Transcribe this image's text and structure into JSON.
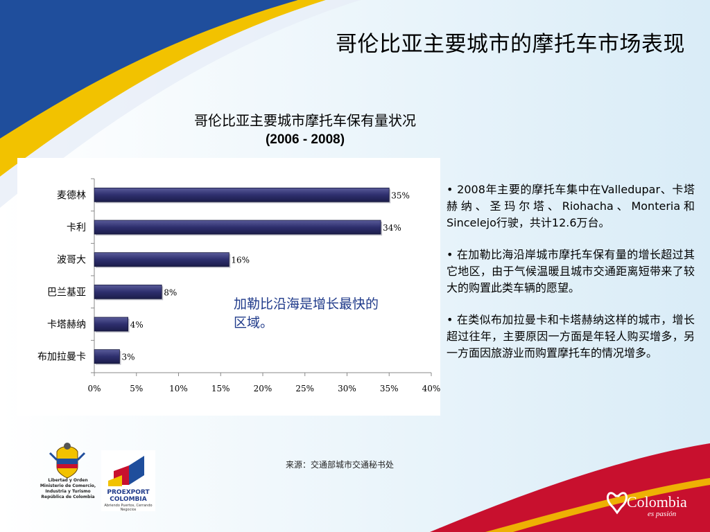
{
  "slide": {
    "title": "哥伦比亚主要城市的摩托车市场表现",
    "source": "来源：交通部城市交通秘书处"
  },
  "chart_data": {
    "type": "bar",
    "orientation": "horizontal",
    "title": "哥伦比亚主要城市摩托车保有量状况",
    "subtitle": "(2006 - 2008)",
    "categories": [
      "麦德林",
      "卡利",
      "波哥大",
      "巴兰基亚",
      "卡塔赫纳",
      "布加拉曼卡"
    ],
    "values": [
      35,
      34,
      16,
      8,
      4,
      3
    ],
    "value_labels": [
      "35%",
      "34%",
      "16%",
      "8%",
      "4%",
      "3%"
    ],
    "x_ticks": [
      "0%",
      "5%",
      "10%",
      "15%",
      "20%",
      "25%",
      "30%",
      "35%",
      "40%"
    ],
    "xlim": [
      0,
      40
    ],
    "xlabel": "",
    "ylabel": "",
    "grid": false,
    "bar_color": "#2e2f6e",
    "annotation": "加勒比沿海是增长最快的区域。"
  },
  "bullets": [
    "• 2008年主要的摩托车集中在Valledupar、卡塔赫纳、圣玛尔塔、Riohacha、Monteria和Sincelejo行驶，共计12.6万台。",
    "• 在加勒比海沿岸城市摩托车保有量的增长超过其它地区，由于气候温暖且城市交通距离短带来了较大的购置此类车辆的愿望。",
    "• 在类似布加拉曼卡和卡塔赫纳这样的城市，增长超过往年，主要原因一方面是年轻人购买增多，另一方面因旅游业而购置摩托车的情况增多。"
  ],
  "logos": {
    "ministry": "Libertad y Orden\nMinisterio de Comercio,\nIndustria y Turismo\nRepública de Colombia",
    "proexport_name": "PROEXPORT\nCOLOMBIA",
    "proexport_sub": "Abriendo Puertos, Cerrando Negocios",
    "brand_word": "Colombia",
    "brand_tag": "es pasión"
  },
  "colors": {
    "accent_blue": "#1f4e9c",
    "accent_yellow": "#f2c200",
    "brand_red": "#c8102e"
  }
}
